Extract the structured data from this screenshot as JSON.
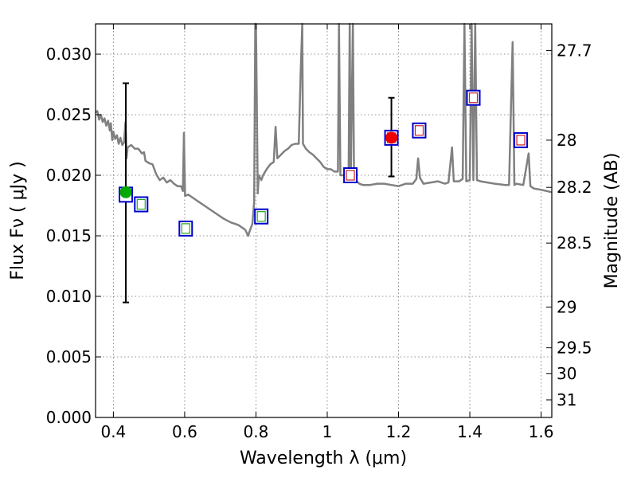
{
  "chart_data": {
    "type": "scatter",
    "xlabel": "Wavelength  λ (μm)",
    "ylabel": "Flux  Fν  ( μJy )",
    "ylabel_right": "Magnitude (AB)",
    "xlim": [
      0.35,
      1.63
    ],
    "ylim": [
      0.0,
      0.0325
    ],
    "x_ticks": [
      {
        "value": 0.4,
        "label": "0.4"
      },
      {
        "value": 0.6,
        "label": "0.6"
      },
      {
        "value": 0.8,
        "label": "0.8"
      },
      {
        "value": 1.0,
        "label": "1"
      },
      {
        "value": 1.2,
        "label": "1.2"
      },
      {
        "value": 1.4,
        "label": "1.4"
      },
      {
        "value": 1.6,
        "label": "1.6"
      }
    ],
    "y_ticks": [
      {
        "value": 0.0,
        "label": "0.000"
      },
      {
        "value": 0.005,
        "label": "0.005"
      },
      {
        "value": 0.01,
        "label": "0.010"
      },
      {
        "value": 0.015,
        "label": "0.015"
      },
      {
        "value": 0.02,
        "label": "0.020"
      },
      {
        "value": 0.025,
        "label": "0.025"
      },
      {
        "value": 0.03,
        "label": "0.030"
      }
    ],
    "right_ticks": [
      {
        "flux": 0.0303,
        "label": "27.7"
      },
      {
        "flux": 0.0229,
        "label": "28"
      },
      {
        "flux": 0.019,
        "label": "28.2"
      },
      {
        "flux": 0.0144,
        "label": "28.5"
      },
      {
        "flux": 0.00912,
        "label": "29"
      },
      {
        "flux": 0.00575,
        "label": "29.5"
      },
      {
        "flux": 0.00363,
        "label": "30"
      },
      {
        "flux": 0.00145,
        "label": "31"
      }
    ],
    "grid": true,
    "sed_model": {
      "name": "model spectrum",
      "color": "#808080",
      "points": [
        [
          0.35,
          0.0252
        ],
        [
          0.355,
          0.0253
        ],
        [
          0.36,
          0.0246
        ],
        [
          0.365,
          0.025
        ],
        [
          0.37,
          0.0244
        ],
        [
          0.375,
          0.0247
        ],
        [
          0.38,
          0.0241
        ],
        [
          0.385,
          0.0245
        ],
        [
          0.39,
          0.0237
        ],
        [
          0.393,
          0.0243
        ],
        [
          0.397,
          0.0229
        ],
        [
          0.4,
          0.0236
        ],
        [
          0.405,
          0.023
        ],
        [
          0.41,
          0.0233
        ],
        [
          0.415,
          0.0226
        ],
        [
          0.42,
          0.0231
        ],
        [
          0.425,
          0.0225
        ],
        [
          0.43,
          0.0227
        ],
        [
          0.434,
          0.0244
        ],
        [
          0.437,
          0.0214
        ],
        [
          0.44,
          0.0223
        ],
        [
          0.45,
          0.0225
        ],
        [
          0.46,
          0.0222
        ],
        [
          0.47,
          0.0222
        ],
        [
          0.48,
          0.0218
        ],
        [
          0.486,
          0.0219
        ],
        [
          0.49,
          0.0212
        ],
        [
          0.5,
          0.021
        ],
        [
          0.51,
          0.0209
        ],
        [
          0.52,
          0.0201
        ],
        [
          0.53,
          0.0196
        ],
        [
          0.54,
          0.0198
        ],
        [
          0.55,
          0.0194
        ],
        [
          0.56,
          0.0196
        ],
        [
          0.57,
          0.0193
        ],
        [
          0.58,
          0.0191
        ],
        [
          0.59,
          0.0191
        ],
        [
          0.595,
          0.0187
        ],
        [
          0.598,
          0.0235
        ],
        [
          0.601,
          0.0183
        ],
        [
          0.61,
          0.0184
        ],
        [
          0.62,
          0.0182
        ],
        [
          0.63,
          0.018
        ],
        [
          0.65,
          0.0176
        ],
        [
          0.67,
          0.0172
        ],
        [
          0.69,
          0.0168
        ],
        [
          0.71,
          0.0164
        ],
        [
          0.73,
          0.0161
        ],
        [
          0.75,
          0.0159
        ],
        [
          0.77,
          0.0155
        ],
        [
          0.778,
          0.015
        ],
        [
          0.785,
          0.0156
        ],
        [
          0.79,
          0.016
        ],
        [
          0.795,
          0.0178
        ],
        [
          0.798,
          0.033
        ],
        [
          0.8,
          0.033
        ],
        [
          0.802,
          0.0275
        ],
        [
          0.805,
          0.0185
        ],
        [
          0.808,
          0.02
        ],
        [
          0.815,
          0.0196
        ],
        [
          0.82,
          0.02
        ],
        [
          0.83,
          0.0205
        ],
        [
          0.84,
          0.0209
        ],
        [
          0.85,
          0.0211
        ],
        [
          0.855,
          0.024
        ],
        [
          0.86,
          0.0214
        ],
        [
          0.87,
          0.0217
        ],
        [
          0.88,
          0.022
        ],
        [
          0.89,
          0.0222
        ],
        [
          0.9,
          0.0225
        ],
        [
          0.91,
          0.0226
        ],
        [
          0.92,
          0.0226
        ],
        [
          0.925,
          0.028
        ],
        [
          0.93,
          0.033
        ],
        [
          0.932,
          0.0226
        ],
        [
          0.94,
          0.0222
        ],
        [
          0.95,
          0.0219
        ],
        [
          0.96,
          0.0217
        ],
        [
          0.97,
          0.0214
        ],
        [
          0.98,
          0.0211
        ],
        [
          0.99,
          0.0207
        ],
        [
          1.0,
          0.0205
        ],
        [
          1.01,
          0.0205
        ],
        [
          1.02,
          0.0203
        ],
        [
          1.03,
          0.0203
        ],
        [
          1.033,
          0.033
        ],
        [
          1.037,
          0.02
        ],
        [
          1.05,
          0.02
        ],
        [
          1.06,
          0.02
        ],
        [
          1.063,
          0.033
        ],
        [
          1.066,
          0.0197
        ],
        [
          1.072,
          0.033
        ],
        [
          1.075,
          0.0197
        ],
        [
          1.09,
          0.0193
        ],
        [
          1.1,
          0.0192
        ],
        [
          1.12,
          0.0192
        ],
        [
          1.14,
          0.0193
        ],
        [
          1.16,
          0.0193
        ],
        [
          1.18,
          0.0192
        ],
        [
          1.2,
          0.0191
        ],
        [
          1.22,
          0.0193
        ],
        [
          1.24,
          0.0193
        ],
        [
          1.25,
          0.0197
        ],
        [
          1.255,
          0.0214
        ],
        [
          1.26,
          0.0198
        ],
        [
          1.27,
          0.0193
        ],
        [
          1.29,
          0.0194
        ],
        [
          1.31,
          0.0195
        ],
        [
          1.33,
          0.0193
        ],
        [
          1.34,
          0.0194
        ],
        [
          1.35,
          0.0223
        ],
        [
          1.355,
          0.0195
        ],
        [
          1.37,
          0.0195
        ],
        [
          1.38,
          0.0197
        ],
        [
          1.385,
          0.033
        ],
        [
          1.39,
          0.0195
        ],
        [
          1.4,
          0.0196
        ],
        [
          1.405,
          0.033
        ],
        [
          1.41,
          0.0196
        ],
        [
          1.415,
          0.033
        ],
        [
          1.42,
          0.0196
        ],
        [
          1.43,
          0.0195
        ],
        [
          1.45,
          0.0194
        ],
        [
          1.47,
          0.0193
        ],
        [
          1.5,
          0.0192
        ],
        [
          1.51,
          0.0192
        ],
        [
          1.52,
          0.031
        ],
        [
          1.525,
          0.0192
        ],
        [
          1.53,
          0.0193
        ],
        [
          1.55,
          0.0192
        ],
        [
          1.565,
          0.0218
        ],
        [
          1.57,
          0.0191
        ],
        [
          1.58,
          0.0189
        ],
        [
          1.6,
          0.0188
        ],
        [
          1.63,
          0.0186
        ]
      ]
    },
    "photometry": [
      {
        "x": 0.435,
        "y": 0.0184,
        "edge": "#0000cc",
        "face": "#ffffff",
        "inner": "#ffffff"
      },
      {
        "x": 0.478,
        "y": 0.0176,
        "edge": "#0000cc",
        "face": "#ffffff",
        "inner": "#22aa22"
      },
      {
        "x": 0.603,
        "y": 0.0156,
        "edge": "#0000cc",
        "face": "#ffffff",
        "inner": "#22aa22"
      },
      {
        "x": 0.815,
        "y": 0.0166,
        "edge": "#0000cc",
        "face": "#ffffff",
        "inner": "#22aa22"
      },
      {
        "x": 1.065,
        "y": 0.02,
        "edge": "#0000cc",
        "face": "#ffffff",
        "inner": "#cc2222"
      },
      {
        "x": 1.18,
        "y": 0.0231,
        "edge": "#0000cc",
        "face": "#ffffff",
        "inner": "#cc2222"
      },
      {
        "x": 1.258,
        "y": 0.0237,
        "edge": "#0000cc",
        "face": "#ffffff",
        "inner": "#cc2222"
      },
      {
        "x": 1.41,
        "y": 0.0264,
        "edge": "#0000cc",
        "face": "#ffffff",
        "inner": "#cc2222"
      },
      {
        "x": 1.543,
        "y": 0.0229,
        "edge": "#0000cc",
        "face": "#ffffff",
        "inner": "#cc2222"
      }
    ],
    "measurements": [
      {
        "x": 0.435,
        "y": 0.0186,
        "yerr_low": 0.0095,
        "yerr_high": 0.0276,
        "color": "#00aa00"
      },
      {
        "x": 1.18,
        "y": 0.0231,
        "yerr_low": 0.0199,
        "yerr_high": 0.0264,
        "color": "#ee0000"
      }
    ]
  }
}
